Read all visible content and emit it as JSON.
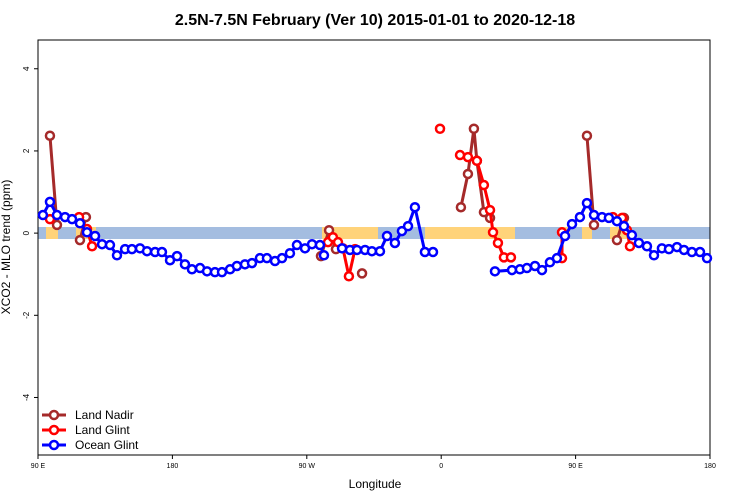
{
  "chart_data": {
    "type": "line",
    "title": "2.5N-7.5N February (Ver 10)   2015-01-01 to 2020-12-18",
    "xlabel": "Longitude",
    "ylabel": "XCO2 - MLO trend (ppm)",
    "xlim": [
      90,
      540
    ],
    "ylim": [
      -5.4,
      4.7
    ],
    "xticks": [
      {
        "value": 90,
        "label": "90 E"
      },
      180,
      {
        "value": 270,
        "label": "90 W"
      },
      {
        "value": 360,
        "label": "0"
      },
      {
        "value": 450,
        "label": "90 E"
      },
      {
        "value": 540,
        "label": "180"
      }
    ],
    "yticks": [
      -4,
      -2,
      0,
      2,
      4
    ],
    "legend": "bottom-left",
    "series": [
      {
        "name": "Land Nadir",
        "color": "#a52a2a",
        "x": [
          98.0,
          102.7,
          null,
          118.1,
          122.1,
          null,
          279.5,
          284.9,
          289.5,
          null,
          307.0,
          null,
          373.2,
          377.9,
          381.9,
          383.9,
          388.6,
          392.7,
          null,
          457.6,
          462.3,
          null,
          477.7,
          482.4
        ],
        "values": [
          2.37,
          0.2,
          null,
          -0.17,
          0.39,
          null,
          -0.56,
          0.07,
          -0.39,
          null,
          -0.98,
          null,
          0.63,
          1.44,
          2.54,
          1.76,
          0.51,
          0.37,
          null,
          2.37,
          0.2,
          null,
          -0.17,
          0.37
        ]
      },
      {
        "name": "Land Glint",
        "color": "#ff0000",
        "x": [
          98.0,
          null,
          117.5,
          122.8,
          126.2,
          null,
          284.2,
          287.5,
          290.9,
          294.2,
          298.2,
          302.3,
          null,
          359.2,
          null,
          372.6,
          377.9,
          383.9,
          388.6,
          392.7,
          394.7,
          398.0,
          402.0,
          406.7,
          null,
          440.9,
          440.9,
          null,
          475.0,
          481.1,
          484.4,
          486.4
        ],
        "values": [
          0.34,
          null,
          0.39,
          0.1,
          -0.32,
          null,
          -0.22,
          -0.1,
          -0.22,
          -0.37,
          -1.05,
          -0.39,
          null,
          2.54,
          null,
          1.9,
          1.85,
          1.76,
          1.17,
          0.56,
          0.02,
          -0.24,
          -0.59,
          -0.59,
          null,
          0.02,
          -0.61,
          null,
          0.39,
          0.37,
          0.07,
          -0.32
        ]
      },
      {
        "name": "Ocean Glint",
        "color": "#0000ff",
        "x": [
          93.3,
          98.0,
          102.7,
          108.1,
          112.8,
          118.1,
          122.8,
          128.2,
          132.9,
          138.2,
          142.9,
          148.3,
          152.9,
          158.3,
          163.0,
          168.4,
          173.0,
          178.4,
          183.1,
          188.4,
          193.1,
          198.5,
          203.2,
          208.5,
          213.2,
          218.6,
          223.2,
          228.6,
          233.3,
          238.6,
          243.3,
          248.7,
          253.4,
          258.7,
          263.4,
          268.8,
          273.5,
          278.8,
          281.5,
          null,
          293.6,
          298.9,
          303.6,
          309.0,
          313.6,
          319.0,
          323.7,
          329.0,
          333.7,
          337.8,
          342.4,
          349.1,
          354.5,
          null,
          396.0,
          407.4,
          412.7,
          417.4,
          422.8,
          427.5,
          432.8,
          437.5,
          442.9,
          447.6,
          452.9,
          457.6,
          462.3,
          467.7,
          472.3,
          477.7,
          482.4,
          487.7,
          492.4,
          497.8,
          502.5,
          507.8,
          512.5,
          517.9,
          522.6,
          527.9,
          533.3,
          538.0
        ],
        "values": [
          0.44,
          0.76,
          0.44,
          0.39,
          0.34,
          0.24,
          0.02,
          -0.07,
          -0.27,
          -0.29,
          -0.54,
          -0.39,
          -0.39,
          -0.37,
          -0.44,
          -0.46,
          -0.46,
          -0.66,
          -0.56,
          -0.76,
          -0.88,
          -0.85,
          -0.93,
          -0.95,
          -0.95,
          -0.88,
          -0.8,
          -0.76,
          -0.73,
          -0.61,
          -0.61,
          -0.68,
          -0.61,
          -0.49,
          -0.29,
          -0.37,
          -0.27,
          -0.29,
          -0.54,
          null,
          -0.37,
          -0.41,
          -0.41,
          -0.41,
          -0.44,
          -0.44,
          -0.07,
          -0.24,
          0.05,
          0.17,
          0.63,
          -0.46,
          -0.46,
          null,
          -0.93,
          -0.9,
          -0.88,
          -0.85,
          -0.8,
          -0.9,
          -0.71,
          -0.61,
          -0.07,
          0.22,
          0.39,
          0.73,
          0.44,
          0.39,
          0.37,
          0.29,
          0.17,
          -0.05,
          -0.24,
          -0.32,
          -0.54,
          -0.37,
          -0.39,
          -0.34,
          -0.41,
          -0.46,
          -0.46,
          -0.61
        ]
      }
    ]
  }
}
